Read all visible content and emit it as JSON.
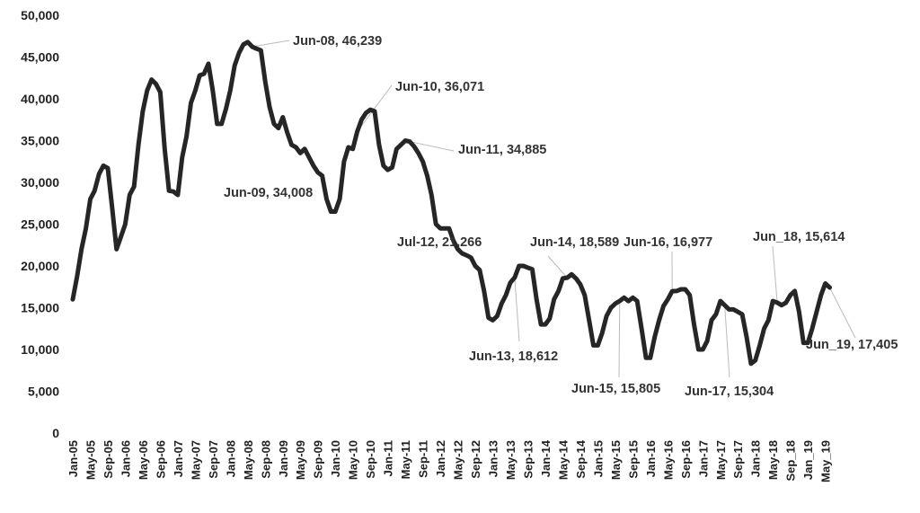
{
  "chart_data": {
    "type": "line",
    "title": "",
    "xlabel": "",
    "ylabel": "",
    "ylim": [
      0,
      50000
    ],
    "yticks": [
      "0",
      "5,000",
      "10,000",
      "15,000",
      "20,000",
      "25,000",
      "30,000",
      "35,000",
      "40,000",
      "45,000",
      "50,000"
    ],
    "grid": false,
    "legend": "none",
    "line_color": "#262626",
    "x_start": "Jan-05",
    "x_end": "Jun-19",
    "xtick_labels": [
      "Jan-05",
      "May-05",
      "Sep-05",
      "Jan-06",
      "May-06",
      "Sep-06",
      "Jan-07",
      "May-07",
      "Sep-07",
      "Jan-08",
      "May-08",
      "Sep-08",
      "Jan-09",
      "May-09",
      "Sep-09",
      "Jan-10",
      "May-10",
      "Sep-10",
      "Jan-11",
      "May-11",
      "Sep-11",
      "Jan-12",
      "May-12",
      "Sep-12",
      "Jan-13",
      "May-13",
      "Sep-13",
      "Jan-14",
      "May-14",
      "Sep-14",
      "Jan-15",
      "May-15",
      "Sep-15",
      "Jan-16",
      "May-16",
      "Sep-16",
      "Jan-17",
      "May-17",
      "Sep-17",
      "Jan-18",
      "May-18",
      "Sep_18",
      "Jan_19",
      "May_19"
    ],
    "values": [
      16000,
      18800,
      22000,
      24500,
      28000,
      29000,
      31000,
      32000,
      31700,
      27000,
      22000,
      23500,
      25000,
      28500,
      29500,
      34500,
      38500,
      41000,
      42300,
      41800,
      40800,
      34000,
      29000,
      28900,
      28500,
      33000,
      35500,
      39500,
      41000,
      42800,
      43000,
      44200,
      41000,
      37000,
      37000,
      38800,
      41000,
      44000,
      45500,
      46500,
      46800,
      46239,
      46000,
      45800,
      42000,
      39000,
      37000,
      36500,
      37800,
      36000,
      34500,
      34200,
      33500,
      34008,
      33000,
      32000,
      31200,
      30800,
      28000,
      26500,
      26500,
      28000,
      32500,
      34200,
      34000,
      36071,
      37500,
      38300,
      38700,
      38500,
      34500,
      32000,
      31500,
      31800,
      34000,
      34500,
      35000,
      34885,
      34300,
      33500,
      32500,
      30800,
      28500,
      25000,
      24500,
      24500,
      24500,
      23000,
      22000,
      21500,
      21266,
      21000,
      20000,
      19500,
      17000,
      13800,
      13500,
      14000,
      15500,
      16500,
      18000,
      18612,
      20000,
      20000,
      19800,
      19600,
      16000,
      13000,
      13000,
      13700,
      16000,
      17000,
      18500,
      18589,
      19000,
      18500,
      17800,
      16500,
      13500,
      10500,
      10500,
      12000,
      14000,
      15000,
      15500,
      15805,
      16200,
      15800,
      16200,
      15800,
      12500,
      9000,
      9000,
      11500,
      13500,
      15200,
      16000,
      16977,
      17000,
      17200,
      17200,
      16500,
      13000,
      10000,
      10000,
      11000,
      13500,
      14200,
      15800,
      15304,
      14800,
      14800,
      14500,
      14200,
      11500,
      8300,
      8700,
      10500,
      12500,
      13500,
      15800,
      15614,
      15300,
      15600,
      16500,
      17000,
      14500,
      10800,
      10800,
      12500,
      14500,
      16500,
      17900,
      17405
    ],
    "annotations": [
      {
        "label": "Jun-08, 46,239",
        "month": "Jun-08",
        "value": 46239
      },
      {
        "label": "Jun-09, 34,008",
        "month": "Jun-09",
        "value": 34008
      },
      {
        "label": "Jun-10, 36,071",
        "month": "Jun-10",
        "value": 36071
      },
      {
        "label": "Jun-11, 34,885",
        "month": "Jun-11",
        "value": 34885
      },
      {
        "label": "Jul-12, 21,266",
        "month": "Jul-12",
        "value": 21266
      },
      {
        "label": "Jun-13, 18,612",
        "month": "Jun-13",
        "value": 18612
      },
      {
        "label": "Jun-14, 18,589",
        "month": "Jun-14",
        "value": 18589
      },
      {
        "label": "Jun-15, 15,805",
        "month": "Jun-15",
        "value": 15805
      },
      {
        "label": "Jun-16, 16,977",
        "month": "Jun-16",
        "value": 16977
      },
      {
        "label": "Jun-17, 15,304",
        "month": "Jun-17",
        "value": 15304
      },
      {
        "label": "Jun_18, 15,614",
        "month": "Jun_18",
        "value": 15614
      },
      {
        "label": "Jun_19, 17,405",
        "month": "Jun_19",
        "value": 17405
      }
    ]
  }
}
